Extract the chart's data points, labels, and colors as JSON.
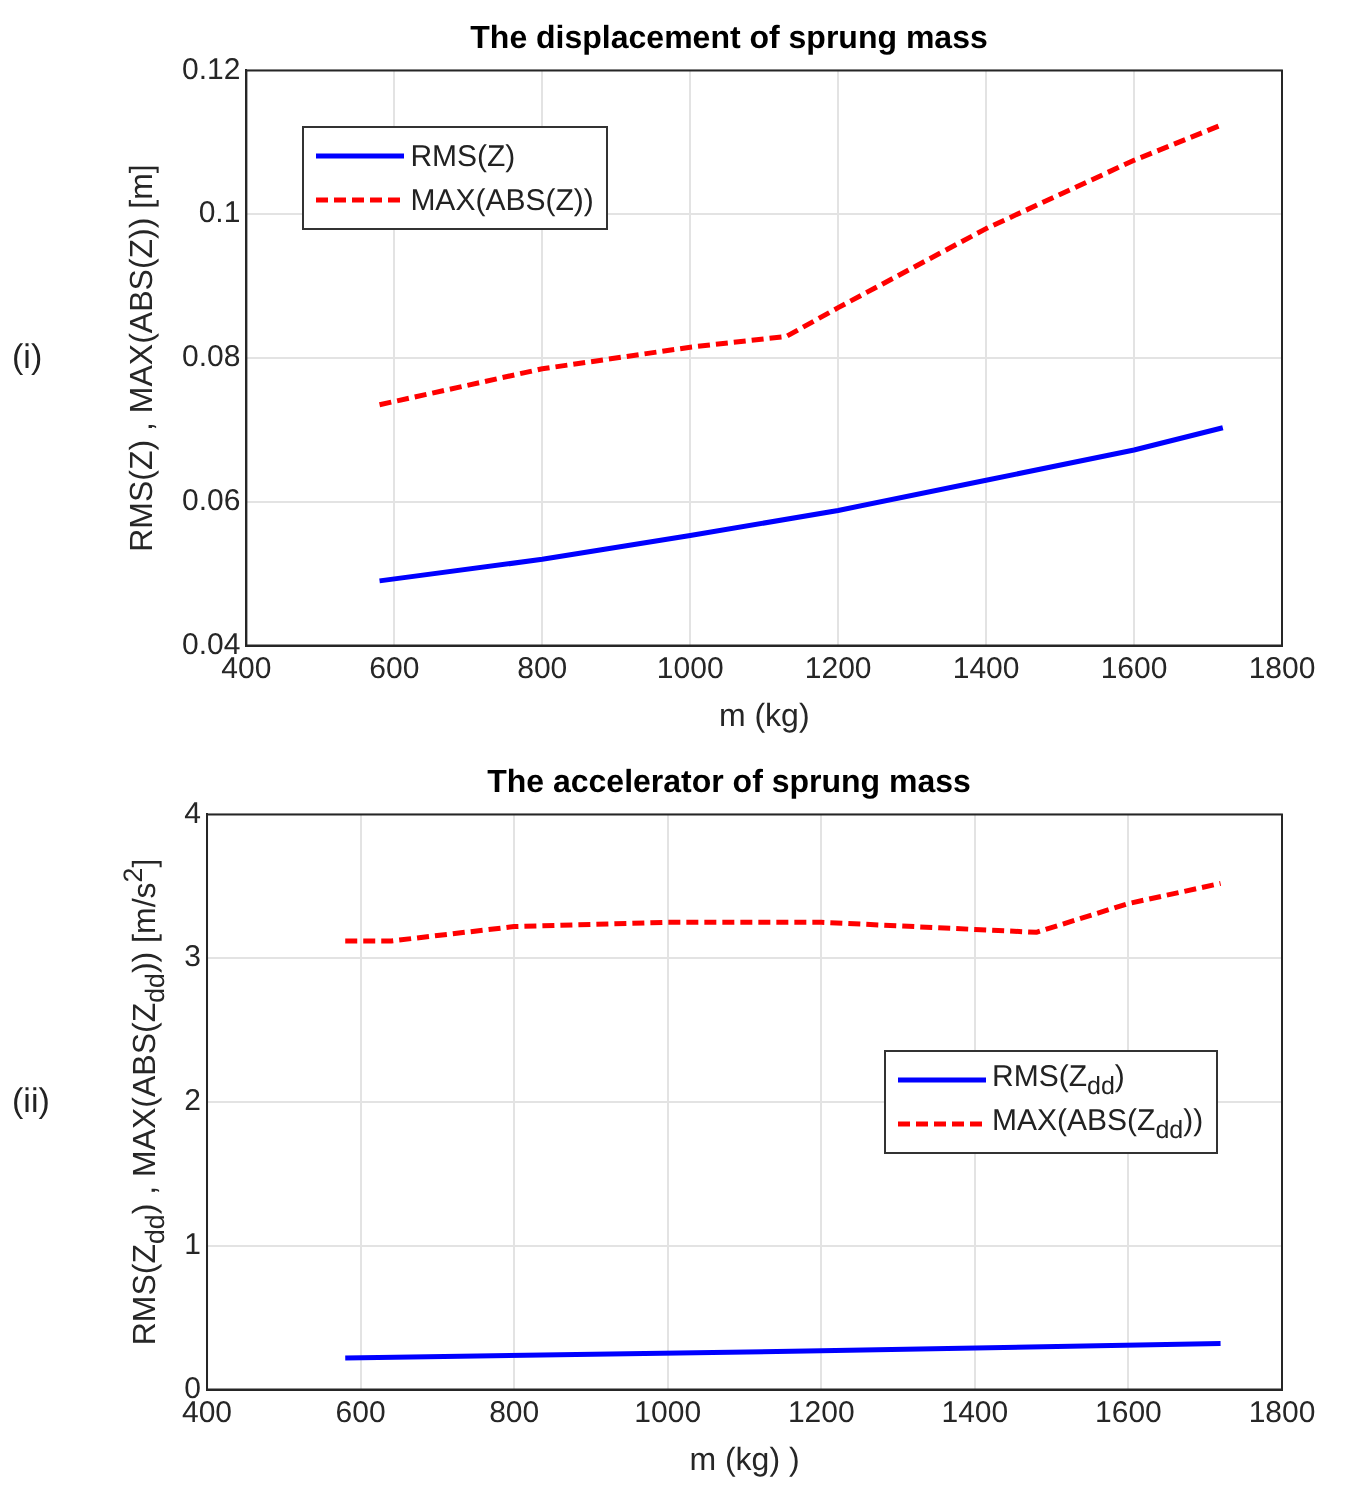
{
  "chart_data": [
    {
      "type": "line",
      "title": "The displacement of sprung mass",
      "xlabel": "m (kg)",
      "ylabel": "RMS(Z) , MAX(ABS(Z)) [m]",
      "annotations": [
        "(i)"
      ],
      "xlim": [
        400,
        1800
      ],
      "xticks": [
        400,
        600,
        800,
        1000,
        1200,
        1400,
        1600,
        1800
      ],
      "ylim": [
        0.04,
        0.12
      ],
      "yticks": [
        0.04,
        0.06,
        0.08,
        0.1,
        0.12
      ],
      "grid": true,
      "legend": "top left",
      "series": [
        {
          "name": "RMS(Z)",
          "color": "#0000ff",
          "line_style": "solid",
          "x": [
            580,
            800,
            1000,
            1200,
            1400,
            1600,
            1720
          ],
          "values": [
            0.049,
            0.052,
            0.0553,
            0.0588,
            0.063,
            0.0672,
            0.0703
          ]
        },
        {
          "name": "MAX(ABS(Z))",
          "color": "#ff0000",
          "line_style": "dashed",
          "x": [
            580,
            800,
            1000,
            1130,
            1200,
            1400,
            1600,
            1720
          ],
          "values": [
            0.0735,
            0.0785,
            0.0815,
            0.083,
            0.087,
            0.098,
            0.1075,
            0.1125
          ]
        }
      ]
    },
    {
      "type": "line",
      "title": "The accelerator of sprung mass",
      "xlabel": "m (kg) )",
      "ylabel": "RMS(Z$_{dd}$) , MAX(ABS(Z$_{dd}$)) [m/s$^{2}$]",
      "annotations": [
        "(ii)"
      ],
      "xlim": [
        400,
        1800
      ],
      "xticks": [
        400,
        600,
        800,
        1000,
        1200,
        1400,
        1600,
        1800
      ],
      "ylim": [
        0,
        4
      ],
      "yticks": [
        0,
        1,
        2,
        3,
        4
      ],
      "grid": true,
      "legend": "right",
      "series": [
        {
          "name": "RMS(Z$_{dd}$)",
          "color": "#0000ff",
          "line_style": "solid",
          "x": [
            580,
            1200,
            1720
          ],
          "values": [
            0.22,
            0.27,
            0.32
          ]
        },
        {
          "name": "MAX(ABS(Z$_{dd}$))",
          "color": "#ff0000",
          "line_style": "dashed",
          "x": [
            580,
            640,
            800,
            1000,
            1200,
            1400,
            1480,
            1600,
            1720
          ],
          "values": [
            3.12,
            3.12,
            3.22,
            3.25,
            3.25,
            3.2,
            3.18,
            3.38,
            3.52
          ]
        }
      ]
    }
  ]
}
